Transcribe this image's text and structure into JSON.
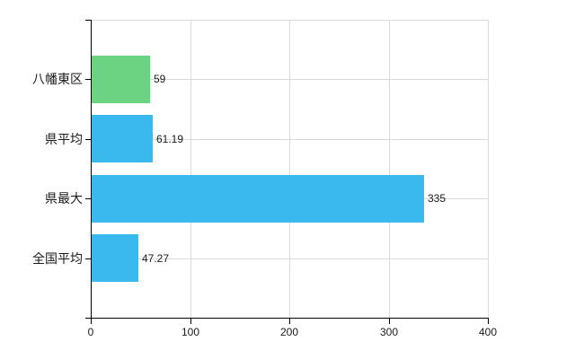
{
  "chart_data": {
    "type": "bar",
    "orientation": "horizontal",
    "title": "",
    "xlabel": "",
    "ylabel": "",
    "categories": [
      "八幡東区",
      "県平均",
      "県最大",
      "全国平均"
    ],
    "values": [
      59,
      61.19,
      335,
      47.27
    ],
    "value_labels": [
      "59",
      "61.19",
      "335",
      "47.27"
    ],
    "bar_colors": [
      "#6bd382",
      "#39b9ee",
      "#39b9ee",
      "#39b9ee"
    ],
    "xlim": [
      0,
      400
    ],
    "x_ticks": [
      0,
      100,
      200,
      300,
      400
    ],
    "x_tick_labels": [
      "0",
      "100",
      "200",
      "300",
      "400"
    ],
    "grid": true,
    "legend": false
  },
  "colors": {
    "axis": "#000000",
    "grid": "#d9d9d9",
    "text": "#1a1a1a",
    "background": "#ffffff"
  }
}
